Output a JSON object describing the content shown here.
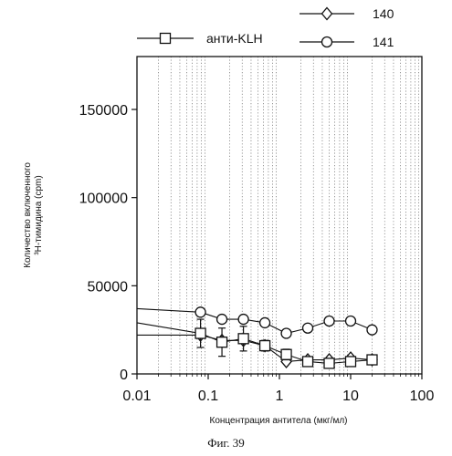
{
  "caption": "Фиг. 39",
  "chart_data": {
    "type": "line",
    "xscale": "log",
    "xlim": [
      0.01,
      100
    ],
    "ylim": [
      0,
      180000
    ],
    "grid": "vertical dotted at minor log ticks",
    "xlabel": "Концентрация антитела (мкг/мл)",
    "ylabel_line1": "Количество включенного",
    "ylabel_line2": "³H-тимидина (cpm)",
    "x_ticks": [
      0.01,
      0.1,
      1,
      10,
      100
    ],
    "x_tick_labels": [
      "0.01",
      "0.1",
      "1",
      "10",
      "100"
    ],
    "y_ticks": [
      0,
      50000,
      100000,
      150000
    ],
    "y_tick_labels": [
      "0",
      "50000",
      "100000",
      "150000"
    ],
    "legend_position": "top",
    "series": [
      {
        "name": "140",
        "marker": "diamond",
        "baseline": 22000,
        "x": [
          0.078,
          0.156,
          0.3125,
          0.625,
          1.25,
          2.5,
          5,
          10,
          20
        ],
        "y": [
          22000,
          19000,
          19000,
          16000,
          7000,
          8000,
          8000,
          9000,
          8000
        ]
      },
      {
        "name": "141",
        "marker": "circle",
        "baseline": 37000,
        "x": [
          0.078,
          0.156,
          0.3125,
          0.625,
          1.25,
          2.5,
          5,
          10,
          20
        ],
        "y": [
          35000,
          31000,
          31000,
          29000,
          23000,
          26000,
          30000,
          30000,
          25000
        ]
      },
      {
        "name": "анти-KLH",
        "marker": "square",
        "baseline": 29000,
        "x": [
          0.078,
          0.156,
          0.3125,
          0.625,
          1.25,
          2.5,
          5,
          10,
          20
        ],
        "y": [
          23000,
          18000,
          20000,
          16000,
          11000,
          7000,
          6000,
          7000,
          8000
        ],
        "err": [
          8000,
          8000,
          7000,
          3000,
          3000,
          2000,
          2000,
          2000,
          2000
        ]
      }
    ]
  }
}
